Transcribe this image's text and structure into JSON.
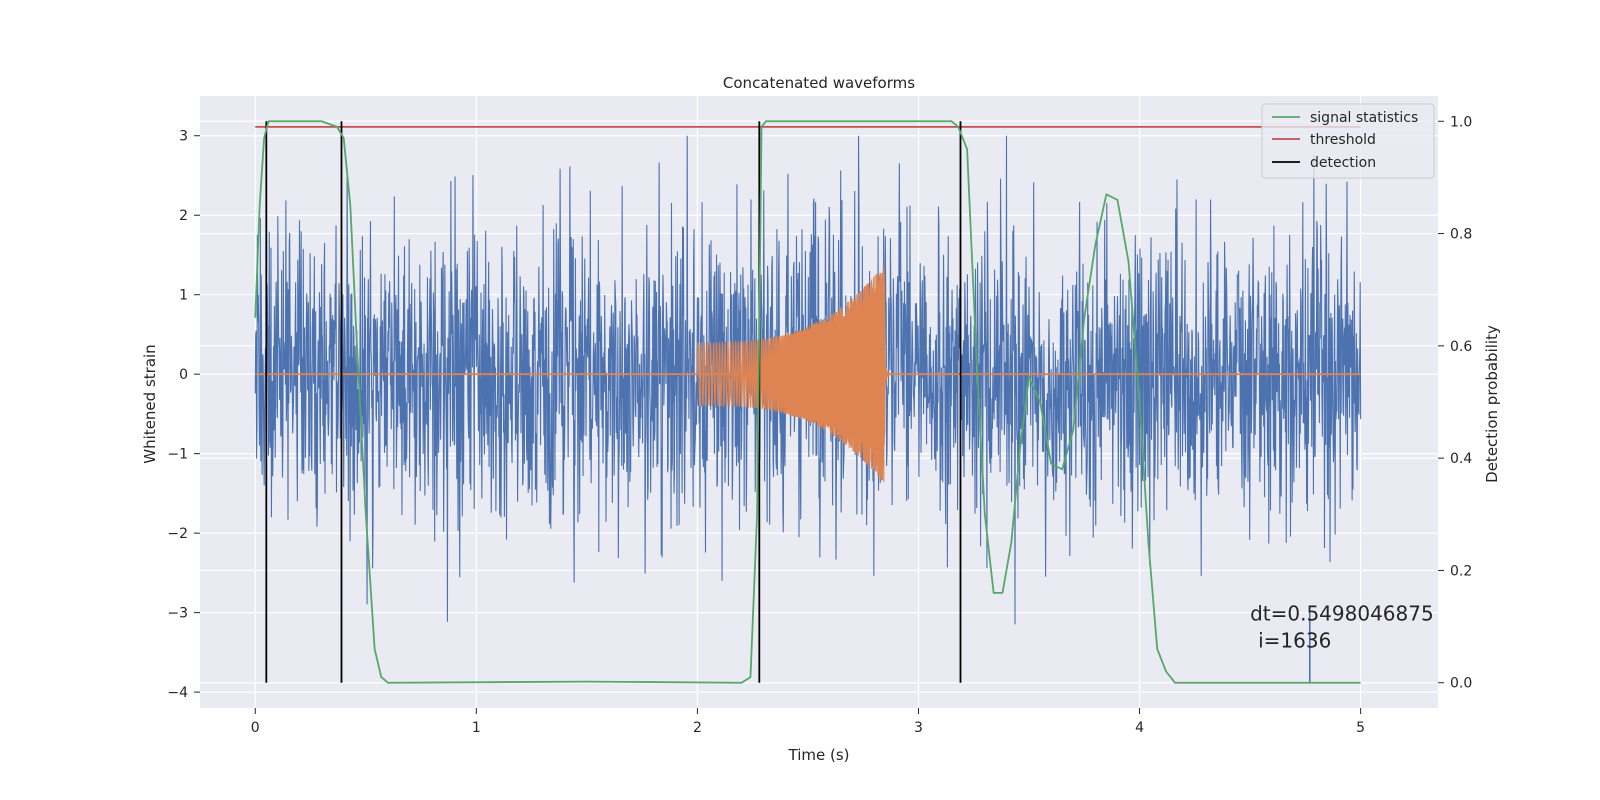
{
  "chart_data": {
    "type": "line",
    "title": "Concatenated waveforms",
    "xlabel": "Time (s)",
    "ylabel": "Whitened strain",
    "ylabel_right": "Detection probability",
    "xlim": [
      -0.25,
      5.35
    ],
    "ylim": [
      -4.2,
      3.5
    ],
    "ylim_right": [
      -0.045,
      1.045
    ],
    "x_ticks": [
      0,
      1,
      2,
      3,
      4,
      5
    ],
    "y_ticks": [
      -4,
      -3,
      -2,
      -1,
      0,
      1,
      2,
      3
    ],
    "y_ticks_right": [
      0.0,
      0.2,
      0.4,
      0.6,
      0.8,
      1.0
    ],
    "x_tick_labels": [
      "0",
      "1",
      "2",
      "3",
      "4",
      "5"
    ],
    "y_tick_labels": [
      "−4",
      "−3",
      "−2",
      "−1",
      "0",
      "1",
      "2",
      "3"
    ],
    "y_tick_labels_right": [
      "0.0",
      "0.2",
      "0.4",
      "0.6",
      "0.8",
      "1.0"
    ],
    "grid": true,
    "legend_position": "top-right",
    "legend": [
      "signal statistics",
      "threshold",
      "detection"
    ],
    "colors": {
      "background": "#eaeaf2",
      "grid": "#ffffff",
      "noise": "#4c72b0",
      "waveform": "#dd8452",
      "signal_statistics": "#55a868",
      "threshold": "#c44e52",
      "detection": "#000000"
    },
    "series": [
      {
        "name": "",
        "axis": "left",
        "color": "#4c72b0",
        "description_style": "noisy",
        "x_range": [
          0,
          5
        ],
        "amplitude_peak_approx": 3.0,
        "amplitude_min_approx": -3.4
      },
      {
        "name": "",
        "axis": "left",
        "color": "#dd8452",
        "style": "chirp",
        "x_start": 2.0,
        "x_end": 2.85,
        "amplitude_start": 0.4,
        "amplitude_end": 1.4
      },
      {
        "name": "signal statistics",
        "axis": "right",
        "color": "#55a868",
        "x": [
          0.0,
          0.02,
          0.04,
          0.06,
          0.08,
          0.1,
          0.3,
          0.37,
          0.4,
          0.43,
          0.46,
          0.5,
          0.54,
          0.57,
          0.6,
          1.5,
          2.2,
          2.24,
          2.27,
          2.29,
          2.31,
          2.35,
          3.15,
          3.18,
          3.22,
          3.26,
          3.3,
          3.34,
          3.38,
          3.42,
          3.46,
          3.5,
          3.55,
          3.6,
          3.65,
          3.7,
          3.75,
          3.8,
          3.85,
          3.9,
          3.95,
          4.0,
          4.04,
          4.08,
          4.12,
          4.16,
          4.2,
          5.0
        ],
        "y": [
          0.65,
          0.85,
          0.97,
          1.0,
          1.0,
          1.0,
          1.0,
          0.99,
          0.97,
          0.85,
          0.6,
          0.3,
          0.06,
          0.01,
          0.0,
          0.002,
          0.0,
          0.01,
          0.3,
          0.99,
          1.0,
          1.0,
          1.0,
          0.99,
          0.95,
          0.6,
          0.3,
          0.16,
          0.16,
          0.25,
          0.42,
          0.545,
          0.5,
          0.39,
          0.38,
          0.45,
          0.65,
          0.78,
          0.87,
          0.86,
          0.75,
          0.5,
          0.25,
          0.06,
          0.02,
          0.0,
          0.0,
          0.0
        ]
      },
      {
        "name": "threshold",
        "axis": "right",
        "color": "#c44e52",
        "x": [
          0,
          5
        ],
        "y": [
          0.99,
          0.99
        ]
      }
    ],
    "detections": [
      0.05,
      0.39,
      2.28,
      3.19
    ],
    "annotation": {
      "line1": "dt=0.5498046875",
      "line2": "i=1636",
      "x": 4.5,
      "y": -3.0
    },
    "marker_line_x": 4.77
  }
}
